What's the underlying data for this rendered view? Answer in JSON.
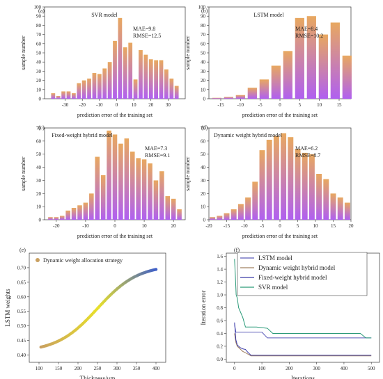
{
  "colors": {
    "bar_top": "#e8a860",
    "bar_bottom": "#b060f0",
    "axis": "#333333",
    "lstm": "#5a5ab8",
    "dynamic": "#a08060",
    "fixed": "#3a3aa8",
    "svr": "#2a9a78",
    "scatter_start": "#c9a060",
    "scatter_mid": "#e8e02a",
    "scatter_end": "#4060c8"
  },
  "chart_data": [
    {
      "type": "bar",
      "panel": "(a)",
      "title": "SVR model",
      "stats": [
        "MAE=9.8",
        "RMSE=12.5"
      ],
      "xlabel": "prediction error of the training set",
      "ylabel": "sample number",
      "xlim": [
        -42,
        40
      ],
      "ylim": [
        0,
        100
      ],
      "xticks": [
        -30,
        -20,
        -10,
        0,
        10,
        20,
        30
      ],
      "yticks": [
        0,
        10,
        20,
        30,
        40,
        50,
        60,
        70,
        80,
        90,
        100
      ],
      "x": [
        -37,
        -34,
        -31,
        -28,
        -25,
        -22,
        -19,
        -16,
        -13,
        -10,
        -7,
        -4,
        -1,
        2,
        5,
        8,
        11,
        14,
        17,
        20,
        23,
        26,
        29,
        32,
        35
      ],
      "values": [
        6,
        3,
        8,
        8,
        6,
        17,
        20,
        22,
        28,
        27,
        33,
        40,
        63,
        88,
        56,
        61,
        21,
        53,
        48,
        43,
        42,
        42,
        32,
        22,
        14
      ]
    },
    {
      "type": "bar",
      "panel": "(b)",
      "title": "LSTM model",
      "stats": [
        "MAE=8.4",
        "RMSE=10.2"
      ],
      "xlabel": "prediction error of the training set",
      "ylabel": "sample number",
      "xlim": [
        -18,
        18
      ],
      "ylim": [
        0,
        100
      ],
      "xticks": [
        -15,
        -10,
        -5,
        0,
        5,
        10,
        15
      ],
      "yticks": [
        0,
        10,
        20,
        30,
        40,
        50,
        60,
        70,
        80,
        90,
        100
      ],
      "x": [
        -16,
        -13,
        -10,
        -7,
        -4,
        -1,
        2,
        5,
        8,
        11,
        14,
        17
      ],
      "values": [
        1,
        2,
        4,
        12,
        21,
        36,
        52,
        88,
        90,
        70,
        83,
        47
      ]
    },
    {
      "type": "bar",
      "panel": "(c)",
      "title": "Fixed-weight hybrid model",
      "stats": [
        "MAE=7.3",
        "RMSE=9.1"
      ],
      "xlabel": "prediction error of the training set",
      "ylabel": "sample number",
      "xlim": [
        -24,
        24
      ],
      "ylim": [
        0,
        70
      ],
      "xticks": [
        -20,
        -10,
        0,
        10,
        20
      ],
      "yticks": [
        0,
        10,
        20,
        30,
        40,
        50,
        60,
        70
      ],
      "x": [
        -22,
        -20,
        -18,
        -16,
        -14,
        -12,
        -10,
        -8,
        -6,
        -4,
        -2,
        0,
        2,
        4,
        6,
        8,
        10,
        12,
        14,
        16,
        18,
        20,
        22
      ],
      "values": [
        2,
        2,
        3,
        7,
        9,
        11,
        13,
        20,
        48,
        34,
        68,
        65,
        58,
        62,
        52,
        47,
        46,
        43,
        30,
        37,
        18,
        16,
        8
      ]
    },
    {
      "type": "bar",
      "panel": "(d)",
      "title": "Dynamic weight hybrid model",
      "stats": [
        "MAE=6.2",
        "RMSE=8.7"
      ],
      "xlabel": "prediction error of the training set",
      "ylabel": "sample number",
      "xlim": [
        -20,
        20
      ],
      "ylim": [
        0,
        70
      ],
      "xticks": [
        -20,
        -15,
        -10,
        -5,
        0,
        5,
        10,
        15,
        20
      ],
      "yticks": [
        0,
        10,
        20,
        30,
        40,
        50,
        60,
        70
      ],
      "x": [
        -19,
        -17,
        -15,
        -13,
        -11,
        -9,
        -7,
        -5,
        -3,
        -1,
        1,
        3,
        5,
        7,
        9,
        11,
        13,
        15,
        17,
        19
      ],
      "values": [
        2,
        3,
        5,
        8,
        12,
        17,
        29,
        53,
        61,
        64,
        66,
        63,
        54,
        51,
        50,
        35,
        31,
        20,
        17,
        13
      ]
    },
    {
      "type": "scatter",
      "panel": "(e)",
      "legend": [
        "Dynamic weight allocation strategy"
      ],
      "xlabel": "Thickness/μm",
      "ylabel": "LSTM weights",
      "xlim": [
        75,
        425
      ],
      "ylim": [
        0.375,
        0.75
      ],
      "xticks": [
        100,
        150,
        200,
        250,
        300,
        350,
        400
      ],
      "yticks": [
        0.4,
        0.45,
        0.5,
        0.55,
        0.6,
        0.65,
        0.7
      ],
      "x_range": [
        105,
        400
      ],
      "curve": {
        "low": 0.41,
        "high": 0.71,
        "mid": 250,
        "scale": 52
      }
    },
    {
      "type": "line",
      "panel": "(f)",
      "xlabel": "Iterations",
      "ylabel": "Iteration error",
      "xlim": [
        -30,
        530
      ],
      "ylim": [
        -0.05,
        1.65
      ],
      "xticks": [
        0,
        100,
        200,
        300,
        400,
        500
      ],
      "yticks": [
        0.0,
        0.2,
        0.4,
        0.6,
        0.8,
        1.0,
        1.2,
        1.4,
        1.6
      ],
      "series": [
        {
          "name": "LSTM model",
          "color_key": "lstm",
          "x": [
            0,
            5,
            10,
            100,
            120,
            500
          ],
          "y": [
            0.54,
            0.42,
            0.42,
            0.42,
            0.33,
            0.33
          ]
        },
        {
          "name": "Dynamic weight hybrid model",
          "color_key": "dynamic",
          "x": [
            0,
            5,
            10,
            20,
            30,
            40,
            60,
            500
          ],
          "y": [
            0.4,
            0.26,
            0.2,
            0.16,
            0.12,
            0.1,
            0.05,
            0.05
          ]
        },
        {
          "name": "Fixed-weight hybrid model",
          "color_key": "fixed",
          "x": [
            0,
            5,
            10,
            20,
            30,
            40,
            50,
            60,
            500
          ],
          "y": [
            0.57,
            0.3,
            0.22,
            0.18,
            0.16,
            0.15,
            0.1,
            0.06,
            0.06
          ]
        },
        {
          "name": "SVR model",
          "color_key": "svr",
          "x": [
            0,
            3,
            6,
            10,
            15,
            20,
            30,
            40,
            80,
            120,
            140,
            460,
            480,
            500
          ],
          "y": [
            1.56,
            1.3,
            1.0,
            0.95,
            0.8,
            0.75,
            0.65,
            0.5,
            0.5,
            0.48,
            0.4,
            0.4,
            0.33,
            0.33
          ]
        }
      ]
    }
  ]
}
